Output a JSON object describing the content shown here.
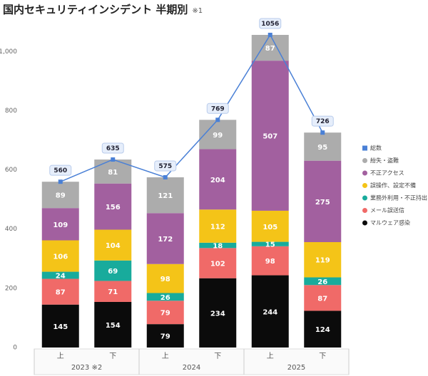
{
  "chart_data": {
    "type": "stacked-bar",
    "title": "国内セキュリティインシデント 半期別",
    "title_note": "※1",
    "categories": [
      "上",
      "下",
      "上",
      "下",
      "上",
      "下"
    ],
    "x_groups": [
      "2023 ※2",
      "2024",
      "2025"
    ],
    "ylim": [
      0,
      1080
    ],
    "yticks": [
      0,
      200,
      400,
      600,
      800,
      {
        "value": 1000,
        "label": "1,000"
      }
    ],
    "series": [
      {
        "name": "マルウェア感染",
        "color": "#0b0b0b",
        "values": [
          145,
          154,
          79,
          234,
          244,
          124
        ]
      },
      {
        "name": "メール誤送信",
        "color": "#f06a68",
        "values": [
          87,
          71,
          79,
          102,
          98,
          87
        ]
      },
      {
        "name": "業務外利用・不正持出",
        "color": "#18ab9c",
        "values": [
          24,
          69,
          26,
          18,
          15,
          26
        ]
      },
      {
        "name": "誤操作、設定不備",
        "color": "#f4c418",
        "values": [
          106,
          104,
          98,
          112,
          105,
          119
        ]
      },
      {
        "name": "不正アクセス",
        "color": "#a2609f",
        "values": [
          109,
          156,
          172,
          204,
          507,
          275
        ]
      },
      {
        "name": "紛失・盗難",
        "color": "#acacac",
        "values": [
          89,
          81,
          121,
          99,
          87,
          95
        ]
      }
    ],
    "total": {
      "name": "総数",
      "color": "#4a80d6",
      "values": [
        560,
        635,
        575,
        769,
        1056,
        726
      ]
    }
  }
}
